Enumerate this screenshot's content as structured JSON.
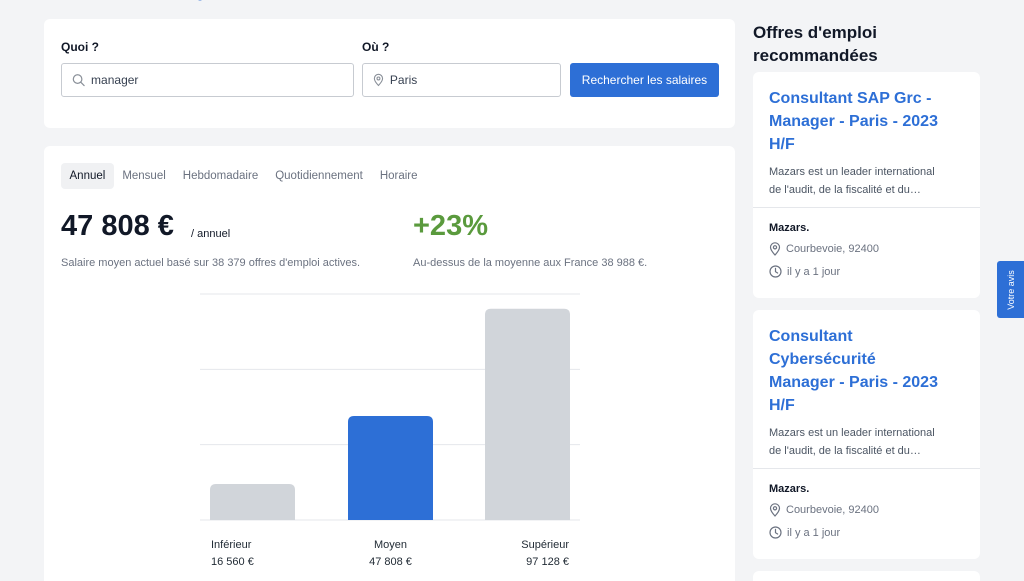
{
  "search": {
    "what_label": "Quoi ?",
    "what_value": "manager",
    "where_label": "Où ?",
    "where_value": "Paris",
    "button_label": "Rechercher les salaires"
  },
  "salary": {
    "tabs": [
      {
        "label": "Annuel",
        "active": true
      },
      {
        "label": "Mensuel",
        "active": false
      },
      {
        "label": "Hebdomadaire",
        "active": false
      },
      {
        "label": "Quotidiennement",
        "active": false
      },
      {
        "label": "Horaire",
        "active": false
      }
    ],
    "average": "47 808 €",
    "per_unit": "/ annuel",
    "average_caption": "Salaire moyen actuel basé sur 38 379 offres d'emploi actives.",
    "compare_pct": "+23%",
    "compare_caption": "Au-dessus de la moyenne aux France 38 988 €."
  },
  "chart_data": {
    "type": "bar",
    "categories": [
      "Inférieur",
      "Moyen",
      "Supérieur"
    ],
    "value_labels": [
      "16 560 €",
      "47 808 €",
      "97 128 €"
    ],
    "values": [
      16560,
      47808,
      97128
    ],
    "colors": [
      "#d1d5da",
      "#2d6fd6",
      "#d1d5da"
    ],
    "grid": true
  },
  "sidebar": {
    "heading": "Offres d'emploi recommandées",
    "jobs": [
      {
        "title": "Consultant SAP Grc - Manager - Paris - 2023 H/F",
        "desc_line1": "Mazars est un leader international",
        "desc_line2": "de l'audit, de la fiscalité et du…",
        "company": "Mazars.",
        "location": "Courbevoie, 92400",
        "posted": "il y a 1 jour"
      },
      {
        "title": "Consultant Cybersécurité Manager - Paris - 2023 H/F",
        "desc_line1": "Mazars est un leader international",
        "desc_line2": "de l'audit, de la fiscalité et du…",
        "company": "Mazars.",
        "location": "Courbevoie, 92400",
        "posted": "il y a 1 jour"
      }
    ]
  },
  "feedback_label": "Votre avis"
}
